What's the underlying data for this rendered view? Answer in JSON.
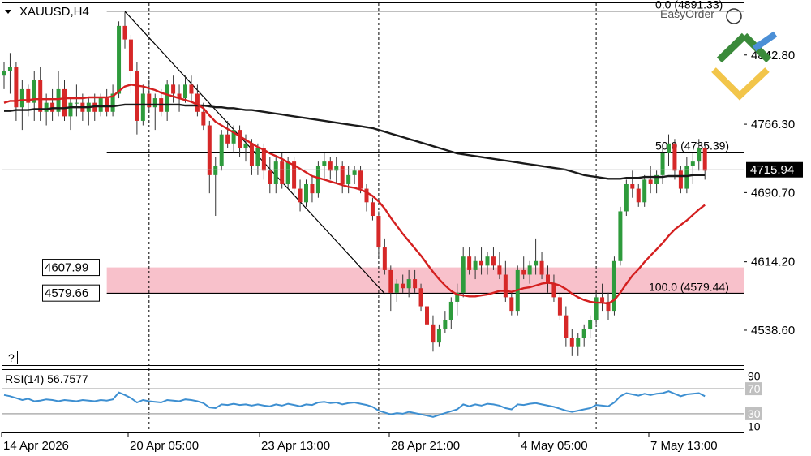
{
  "header": {
    "symbol_label": "XAUUSD,H4"
  },
  "indicator": {
    "label": "RSI(14) 56.7577"
  },
  "help_button": {
    "label": "?"
  },
  "logo": {
    "text": "EasyOrder"
  },
  "colors": {
    "bull": "#2e9b3c",
    "bear": "#d62828",
    "ma_fast": "#d42020",
    "ma_slow": "#1a1a1a",
    "rsi": "#3d8fd1",
    "zone": "#f7b6c2",
    "grid": "#000000",
    "current_bg": "#000000"
  },
  "chart_data": {
    "type": "candlestick",
    "price_axis": {
      "min": 4500,
      "max": 4900,
      "ticks": [
        {
          "value": 4842.8,
          "label": "4842.80"
        },
        {
          "value": 4766.3,
          "label": "4766.30"
        },
        {
          "value": 4690.7,
          "label": "4690.70"
        },
        {
          "value": 4614.2,
          "label": "4614.20"
        },
        {
          "value": 4538.6,
          "label": "4538.60"
        }
      ]
    },
    "current_price": {
      "value": 4715.94,
      "label": "4715.94"
    },
    "time_axis": {
      "labels": [
        "14 Apr 2026",
        "20 Apr 05:00",
        "23 Apr 13:00",
        "28 Apr 21:00",
        "4 May 05:00",
        "7 May 13:00"
      ],
      "separator_bars": [
        24,
        62,
        98
      ]
    },
    "fibonacci": [
      {
        "level": "0.0",
        "value": 4891.33,
        "label": "0.0 (4891.33)"
      },
      {
        "level": "50.0",
        "value": 4735.39,
        "label": "50.0 (4735.39)"
      },
      {
        "level": "100.0",
        "value": 4579.44,
        "label": "100.0 (4579.44)"
      }
    ],
    "zone": {
      "top": 4607.99,
      "bottom": 4579.66,
      "top_label": "4607.99",
      "bottom_label": "4579.66"
    },
    "trendline": {
      "from_bar": 20,
      "from_value": 4891,
      "to_bar": 63,
      "to_value": 4579
    },
    "candles": [
      [
        4820,
        4835,
        4805,
        4825
      ],
      [
        4825,
        4845,
        4800,
        4830
      ],
      [
        4830,
        4835,
        4770,
        4785
      ],
      [
        4785,
        4815,
        4760,
        4805
      ],
      [
        4805,
        4810,
        4775,
        4790
      ],
      [
        4790,
        4825,
        4770,
        4815
      ],
      [
        4815,
        4830,
        4770,
        4780
      ],
      [
        4780,
        4800,
        4765,
        4790
      ],
      [
        4790,
        4805,
        4770,
        4780
      ],
      [
        4780,
        4825,
        4775,
        4805
      ],
      [
        4805,
        4815,
        4770,
        4775
      ],
      [
        4775,
        4795,
        4760,
        4790
      ],
      [
        4790,
        4810,
        4775,
        4790
      ],
      [
        4790,
        4800,
        4770,
        4780
      ],
      [
        4780,
        4795,
        4765,
        4790
      ],
      [
        4790,
        4800,
        4770,
        4780
      ],
      [
        4780,
        4800,
        4775,
        4795
      ],
      [
        4795,
        4805,
        4775,
        4780
      ],
      [
        4780,
        4810,
        4775,
        4800
      ],
      [
        4800,
        4880,
        4795,
        4875
      ],
      [
        4875,
        4890,
        4850,
        4860
      ],
      [
        4860,
        4865,
        4800,
        4825
      ],
      [
        4825,
        4835,
        4755,
        4770
      ],
      [
        4770,
        4810,
        4765,
        4800
      ],
      [
        4800,
        4815,
        4780,
        4785
      ],
      [
        4785,
        4800,
        4760,
        4795
      ],
      [
        4795,
        4805,
        4775,
        4780
      ],
      [
        4780,
        4815,
        4770,
        4810
      ],
      [
        4810,
        4820,
        4790,
        4800
      ],
      [
        4800,
        4810,
        4780,
        4795
      ],
      [
        4795,
        4820,
        4790,
        4810
      ],
      [
        4810,
        4820,
        4790,
        4800
      ],
      [
        4800,
        4810,
        4775,
        4780
      ],
      [
        4780,
        4790,
        4760,
        4765
      ],
      [
        4765,
        4770,
        4690,
        4710
      ],
      [
        4710,
        4730,
        4665,
        4720
      ],
      [
        4720,
        4760,
        4715,
        4755
      ],
      [
        4755,
        4770,
        4740,
        4745
      ],
      [
        4745,
        4765,
        4735,
        4760
      ],
      [
        4760,
        4765,
        4730,
        4740
      ],
      [
        4740,
        4755,
        4725,
        4745
      ],
      [
        4745,
        4750,
        4710,
        4720
      ],
      [
        4720,
        4745,
        4710,
        4740
      ],
      [
        4740,
        4745,
        4705,
        4715
      ],
      [
        4715,
        4730,
        4690,
        4700
      ],
      [
        4700,
        4730,
        4690,
        4725
      ],
      [
        4725,
        4735,
        4695,
        4700
      ],
      [
        4700,
        4730,
        4695,
        4725
      ],
      [
        4725,
        4730,
        4690,
        4695
      ],
      [
        4695,
        4705,
        4670,
        4680
      ],
      [
        4680,
        4705,
        4675,
        4700
      ],
      [
        4700,
        4710,
        4680,
        4690
      ],
      [
        4690,
        4725,
        4685,
        4720
      ],
      [
        4720,
        4735,
        4705,
        4725
      ],
      [
        4725,
        4730,
        4705,
        4715
      ],
      [
        4715,
        4730,
        4700,
        4720
      ],
      [
        4720,
        4725,
        4690,
        4700
      ],
      [
        4700,
        4720,
        4690,
        4710
      ],
      [
        4710,
        4720,
        4700,
        4715
      ],
      [
        4715,
        4720,
        4690,
        4695
      ],
      [
        4695,
        4700,
        4670,
        4680
      ],
      [
        4680,
        4685,
        4660,
        4665
      ],
      [
        4665,
        4670,
        4620,
        4630
      ],
      [
        4630,
        4640,
        4600,
        4605
      ],
      [
        4605,
        4610,
        4560,
        4580
      ],
      [
        4580,
        4595,
        4570,
        4590
      ],
      [
        4590,
        4600,
        4580,
        4585
      ],
      [
        4585,
        4605,
        4575,
        4595
      ],
      [
        4595,
        4605,
        4580,
        4585
      ],
      [
        4585,
        4590,
        4560,
        4565
      ],
      [
        4565,
        4575,
        4540,
        4545
      ],
      [
        4545,
        4555,
        4515,
        4525
      ],
      [
        4525,
        4545,
        4520,
        4540
      ],
      [
        4540,
        4560,
        4535,
        4550
      ],
      [
        4550,
        4575,
        4540,
        4570
      ],
      [
        4570,
        4590,
        4555,
        4580
      ],
      [
        4580,
        4630,
        4575,
        4620
      ],
      [
        4620,
        4630,
        4600,
        4605
      ],
      [
        4605,
        4620,
        4595,
        4615
      ],
      [
        4615,
        4630,
        4600,
        4610
      ],
      [
        4610,
        4625,
        4600,
        4620
      ],
      [
        4620,
        4630,
        4605,
        4610
      ],
      [
        4610,
        4625,
        4595,
        4600
      ],
      [
        4600,
        4615,
        4570,
        4575
      ],
      [
        4575,
        4580,
        4555,
        4560
      ],
      [
        4560,
        4610,
        4555,
        4605
      ],
      [
        4605,
        4620,
        4595,
        4600
      ],
      [
        4600,
        4615,
        4590,
        4610
      ],
      [
        4610,
        4640,
        4600,
        4615
      ],
      [
        4615,
        4625,
        4595,
        4600
      ],
      [
        4600,
        4610,
        4580,
        4590
      ],
      [
        4590,
        4600,
        4570,
        4575
      ],
      [
        4575,
        4580,
        4550,
        4555
      ],
      [
        4555,
        4565,
        4520,
        4530
      ],
      [
        4530,
        4540,
        4510,
        4520
      ],
      [
        4520,
        4535,
        4510,
        4530
      ],
      [
        4530,
        4545,
        4520,
        4540
      ],
      [
        4540,
        4555,
        4530,
        4550
      ],
      [
        4550,
        4580,
        4545,
        4575
      ],
      [
        4575,
        4590,
        4560,
        4570
      ],
      [
        4570,
        4580,
        4550,
        4560
      ],
      [
        4560,
        4620,
        4555,
        4615
      ],
      [
        4615,
        4675,
        4610,
        4670
      ],
      [
        4670,
        4705,
        4665,
        4700
      ],
      [
        4700,
        4715,
        4685,
        4695
      ],
      [
        4695,
        4700,
        4675,
        4680
      ],
      [
        4680,
        4710,
        4675,
        4705
      ],
      [
        4705,
        4720,
        4690,
        4700
      ],
      [
        4700,
        4715,
        4690,
        4710
      ],
      [
        4710,
        4740,
        4700,
        4735
      ],
      [
        4735,
        4755,
        4720,
        4745
      ],
      [
        4745,
        4750,
        4705,
        4715
      ],
      [
        4715,
        4720,
        4690,
        4695
      ],
      [
        4695,
        4730,
        4690,
        4720
      ],
      [
        4720,
        4735,
        4700,
        4725
      ],
      [
        4725,
        4750,
        4715,
        4740
      ],
      [
        4740,
        4745,
        4705,
        4715
      ]
    ],
    "ma_fast": {
      "name": "",
      "values": [
        4790,
        4792,
        4792,
        4793,
        4793,
        4794,
        4794,
        4794,
        4794,
        4794,
        4795,
        4795,
        4795,
        4795,
        4796,
        4796,
        4796,
        4796,
        4797,
        4803,
        4808,
        4810,
        4809,
        4808,
        4806,
        4804,
        4801,
        4799,
        4797,
        4795,
        4793,
        4791,
        4788,
        4784,
        4776,
        4769,
        4765,
        4761,
        4757,
        4753,
        4749,
        4745,
        4741,
        4738,
        4734,
        4731,
        4728,
        4724,
        4721,
        4717,
        4713,
        4709,
        4707,
        4705,
        4703,
        4701,
        4699,
        4697,
        4696,
        4694,
        4691,
        4687,
        4681,
        4673,
        4663,
        4654,
        4645,
        4637,
        4629,
        4621,
        4612,
        4603,
        4595,
        4588,
        4582,
        4578,
        4577,
        4576,
        4576,
        4577,
        4578,
        4580,
        4582,
        4582,
        4581,
        4583,
        4585,
        4586,
        4588,
        4590,
        4591,
        4590,
        4588,
        4584,
        4579,
        4575,
        4572,
        4570,
        4569,
        4569,
        4568,
        4572,
        4580,
        4590,
        4599,
        4606,
        4614,
        4621,
        4628,
        4635,
        4643,
        4650,
        4655,
        4660,
        4666,
        4672,
        4677
      ]
    },
    "ma_slow": {
      "name": "",
      "values": [
        4781,
        4781,
        4782,
        4782,
        4782,
        4783,
        4783,
        4783,
        4784,
        4784,
        4784,
        4785,
        4785,
        4785,
        4785,
        4786,
        4786,
        4786,
        4786,
        4787,
        4788,
        4788,
        4788,
        4788,
        4788,
        4788,
        4788,
        4788,
        4788,
        4788,
        4787,
        4787,
        4787,
        4787,
        4786,
        4785,
        4785,
        4784,
        4784,
        4783,
        4782,
        4782,
        4781,
        4780,
        4779,
        4778,
        4777,
        4776,
        4775,
        4774,
        4773,
        4772,
        4771,
        4770,
        4769,
        4768,
        4767,
        4766,
        4765,
        4764,
        4763,
        4762,
        4760,
        4758,
        4756,
        4754,
        4752,
        4750,
        4748,
        4746,
        4744,
        4742,
        4740,
        4738,
        4736,
        4734,
        4733,
        4732,
        4731,
        4730,
        4729,
        4728,
        4727,
        4726,
        4725,
        4724,
        4723,
        4722,
        4721,
        4720,
        4719,
        4718,
        4717,
        4716,
        4714,
        4712,
        4710,
        4709,
        4708,
        4707,
        4706,
        4706,
        4706,
        4707,
        4707,
        4707,
        4708,
        4708,
        4708,
        4708,
        4709,
        4709,
        4709,
        4709,
        4710,
        4710,
        4710
      ]
    },
    "rsi": {
      "min": 0,
      "max": 100,
      "ticks": [
        {
          "value": 90,
          "label": "90"
        },
        {
          "value": 70,
          "label": "70"
        },
        {
          "value": 30,
          "label": "30"
        },
        {
          "value": 10,
          "label": "10"
        }
      ],
      "levels": [
        70,
        30
      ],
      "values": [
        60,
        58,
        55,
        52,
        54,
        50,
        51,
        53,
        52,
        50,
        52,
        51,
        50,
        52,
        51,
        50,
        52,
        51,
        53,
        64,
        60,
        55,
        48,
        52,
        50,
        49,
        48,
        52,
        51,
        50,
        53,
        52,
        50,
        47,
        40,
        39,
        45,
        44,
        46,
        44,
        45,
        43,
        45,
        43,
        42,
        45,
        43,
        46,
        44,
        42,
        45,
        44,
        48,
        49,
        47,
        48,
        45,
        47,
        48,
        46,
        44,
        41,
        35,
        32,
        29,
        31,
        30,
        33,
        31,
        29,
        27,
        25,
        28,
        31,
        34,
        37,
        45,
        42,
        45,
        43,
        46,
        45,
        43,
        39,
        37,
        45,
        44,
        46,
        47,
        45,
        43,
        41,
        38,
        35,
        33,
        35,
        37,
        39,
        44,
        43,
        42,
        48,
        58,
        63,
        61,
        59,
        62,
        60,
        62,
        63,
        66,
        62,
        58,
        61,
        62,
        63,
        58
      ]
    }
  }
}
